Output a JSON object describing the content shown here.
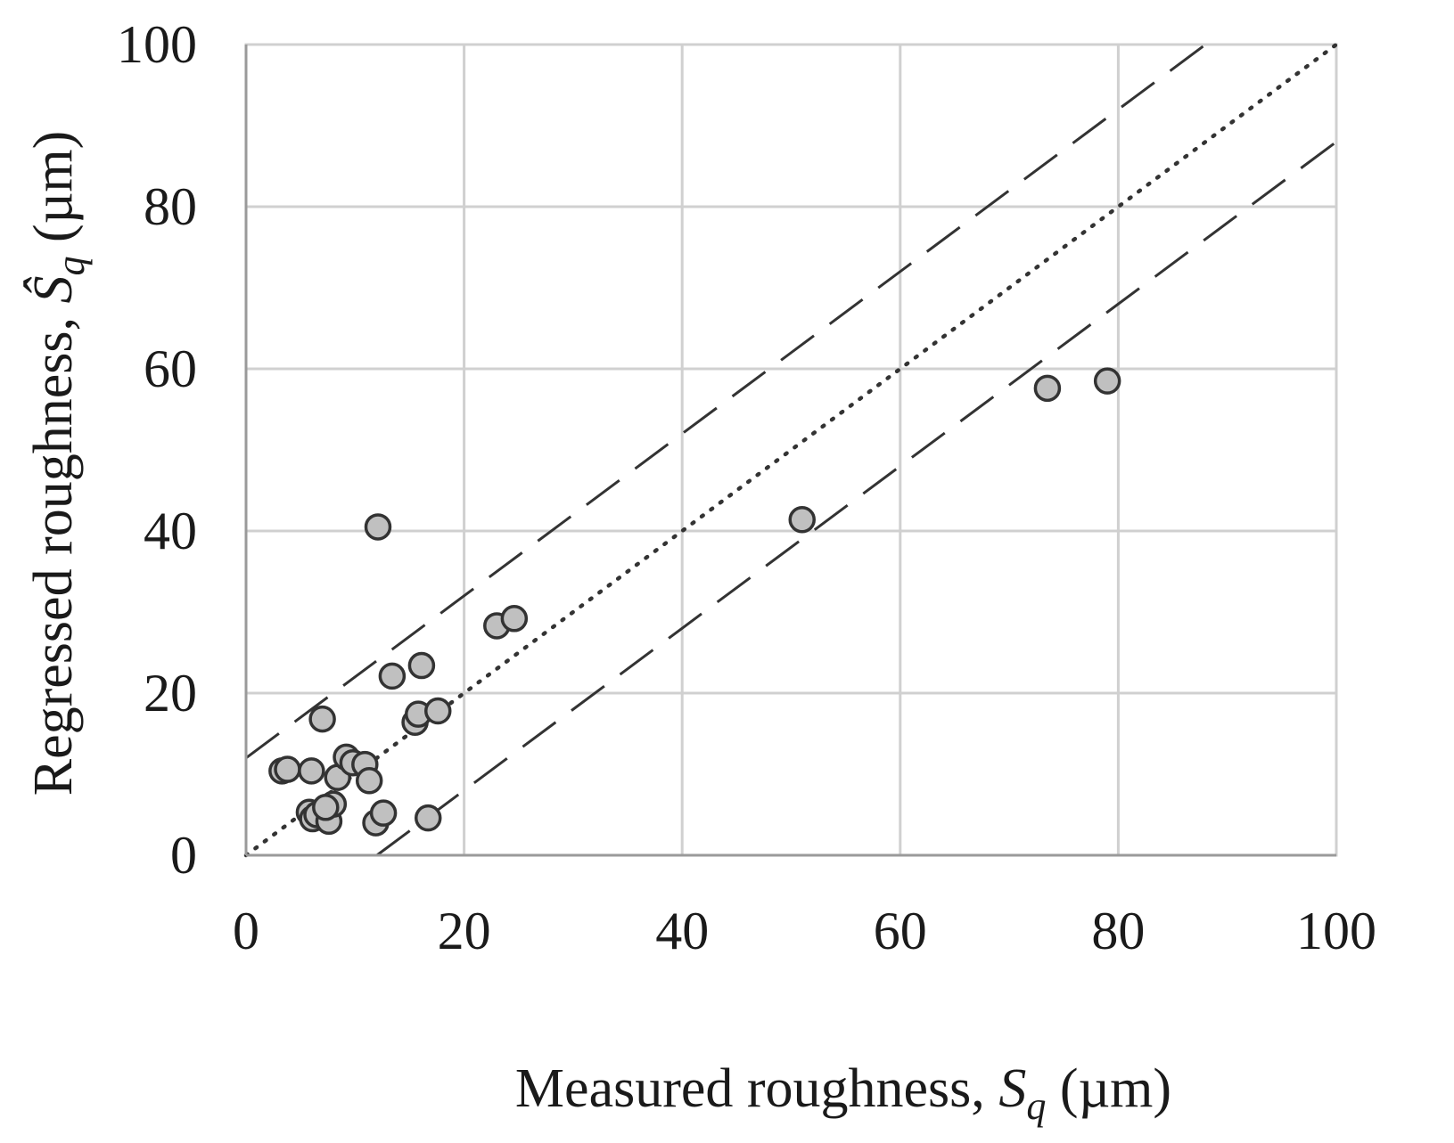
{
  "chart_data": {
    "type": "scatter",
    "title": "",
    "xlabel": {
      "text": "Measured roughness, ",
      "symbol": "S",
      "subscript": "q",
      "unit": " (µm)"
    },
    "ylabel": {
      "text": "Regressed roughness, ",
      "symbol": "Ŝ",
      "subscript": "q",
      "unit": " (µm)"
    },
    "xlim": [
      0,
      100
    ],
    "ylim": [
      0,
      100
    ],
    "xticks": [
      0,
      20,
      40,
      60,
      80,
      100
    ],
    "yticks": [
      0,
      20,
      40,
      60,
      80,
      100
    ],
    "grid": true,
    "legend": "none",
    "colors": {
      "marker_fill": "#c0c0c0",
      "marker_edge": "#333333",
      "grid": "#d0d0d0",
      "reference": "#333333"
    },
    "reference_lines": [
      {
        "name": "identity",
        "style": "dotted",
        "x": [
          0,
          100
        ],
        "y": [
          0,
          100
        ]
      },
      {
        "name": "upper-bound",
        "style": "dashed",
        "x": [
          0,
          88
        ],
        "y": [
          12,
          100
        ]
      },
      {
        "name": "lower-bound",
        "style": "dashed",
        "x": [
          12,
          100
        ],
        "y": [
          0,
          88
        ]
      }
    ],
    "series": [
      {
        "name": "samples",
        "points": [
          {
            "x": 3.3,
            "y": 10.4
          },
          {
            "x": 3.8,
            "y": 10.6
          },
          {
            "x": 6.0,
            "y": 10.4
          },
          {
            "x": 5.8,
            "y": 5.3
          },
          {
            "x": 6.1,
            "y": 4.5
          },
          {
            "x": 6.5,
            "y": 5.0
          },
          {
            "x": 7.0,
            "y": 16.8
          },
          {
            "x": 7.6,
            "y": 4.2
          },
          {
            "x": 8.0,
            "y": 6.3
          },
          {
            "x": 7.3,
            "y": 5.9
          },
          {
            "x": 8.4,
            "y": 9.6
          },
          {
            "x": 9.2,
            "y": 12.1
          },
          {
            "x": 9.8,
            "y": 11.4
          },
          {
            "x": 10.9,
            "y": 11.2
          },
          {
            "x": 11.3,
            "y": 9.2
          },
          {
            "x": 11.9,
            "y": 4.0
          },
          {
            "x": 12.6,
            "y": 5.2
          },
          {
            "x": 12.1,
            "y": 40.5
          },
          {
            "x": 13.4,
            "y": 22.1
          },
          {
            "x": 15.5,
            "y": 16.4
          },
          {
            "x": 15.8,
            "y": 17.4
          },
          {
            "x": 16.1,
            "y": 23.4
          },
          {
            "x": 16.7,
            "y": 4.6
          },
          {
            "x": 17.6,
            "y": 17.8
          },
          {
            "x": 23.0,
            "y": 28.3
          },
          {
            "x": 24.6,
            "y": 29.2
          },
          {
            "x": 51.0,
            "y": 41.4
          },
          {
            "x": 73.5,
            "y": 57.6
          },
          {
            "x": 79.0,
            "y": 58.5
          }
        ]
      }
    ]
  }
}
